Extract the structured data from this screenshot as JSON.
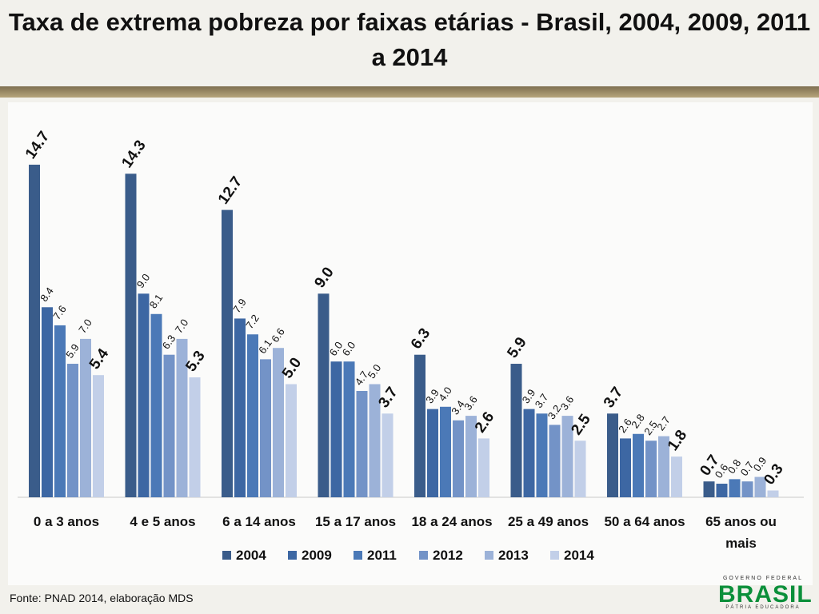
{
  "page": {
    "title": "Taxa de extrema pobreza por faixas etárias - Brasil, 2004, 2009, 2011 a 2014",
    "source": "Fonte: PNAD 2014, elaboração MDS",
    "logo": {
      "top": "GOVERNO FEDERAL",
      "main": "BRASIL",
      "bottom": "PÁTRIA EDUCADORA"
    }
  },
  "chart_data": {
    "type": "bar",
    "categories": [
      "0 a 3 anos",
      "4 e 5 anos",
      "6 a 14 anos",
      "15 a 17 anos",
      "18 a 24 anos",
      "25 a 49 anos",
      "50 a 64 anos",
      "65 anos ou mais"
    ],
    "series": [
      {
        "name": "2004",
        "color": "#3a5c8a",
        "values": [
          14.7,
          14.3,
          12.7,
          9.0,
          6.3,
          5.9,
          3.7,
          0.7
        ]
      },
      {
        "name": "2009",
        "color": "#3d67a3",
        "values": [
          8.4,
          9.0,
          7.9,
          6.0,
          3.9,
          3.9,
          2.6,
          0.6
        ]
      },
      {
        "name": "2011",
        "color": "#4b79b7",
        "values": [
          7.6,
          8.1,
          7.2,
          6.0,
          4.0,
          3.7,
          2.8,
          0.8
        ]
      },
      {
        "name": "2012",
        "color": "#7393c7",
        "values": [
          5.9,
          6.3,
          6.1,
          4.7,
          3.4,
          3.2,
          2.5,
          0.7
        ]
      },
      {
        "name": "2013",
        "color": "#9cb2d8",
        "values": [
          7.0,
          7.0,
          6.6,
          5.0,
          3.6,
          3.6,
          2.7,
          0.9
        ]
      },
      {
        "name": "2014",
        "color": "#c2cfe8",
        "values": [
          5.4,
          5.3,
          5.0,
          3.7,
          2.6,
          2.5,
          1.8,
          0.3
        ]
      }
    ],
    "ylim": [
      0,
      16
    ],
    "legend_position": "bottom",
    "grid": false,
    "value_labels": true
  }
}
